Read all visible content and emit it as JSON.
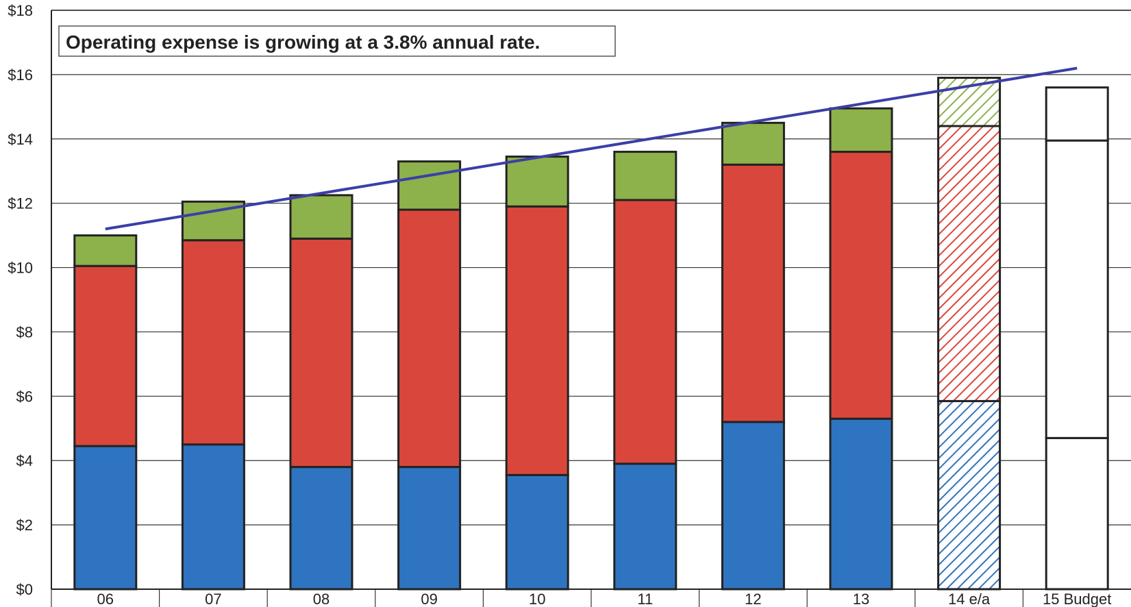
{
  "chart_data": {
    "type": "bar",
    "stacked": true,
    "categories": [
      "06",
      "07",
      "08",
      "09",
      "10",
      "11",
      "12",
      "13",
      "14 e/a",
      "15 Budget"
    ],
    "series": [
      {
        "values": [
          4.45,
          4.5,
          3.8,
          3.8,
          3.55,
          3.9,
          5.2,
          5.3,
          5.85,
          4.7
        ],
        "color": "#2f74c0"
      },
      {
        "values": [
          5.6,
          6.35,
          7.1,
          8.0,
          8.35,
          8.2,
          8.0,
          8.3,
          8.55,
          9.25
        ],
        "color": "#d9473c"
      },
      {
        "values": [
          0.95,
          1.2,
          1.35,
          1.5,
          1.55,
          1.5,
          1.3,
          1.35,
          1.5,
          1.65
        ],
        "color": "#8db14b"
      }
    ],
    "bar_styles": [
      "solid",
      "solid",
      "solid",
      "solid",
      "solid",
      "solid",
      "solid",
      "solid",
      "hatched",
      "outline"
    ],
    "trend_line": {
      "x": [
        "06",
        "15 Budget"
      ],
      "y": [
        11.2,
        16.2
      ],
      "color": "#3b3fa6"
    },
    "annotation": "Operating expense is growing at a 3.8% annual rate.",
    "y_tick_labels": [
      "$0",
      "$2",
      "$4",
      "$6",
      "$8",
      "$10",
      "$12",
      "$14",
      "$16",
      "$18"
    ],
    "ylim": [
      0,
      18
    ],
    "grid": true,
    "legend": "none"
  }
}
